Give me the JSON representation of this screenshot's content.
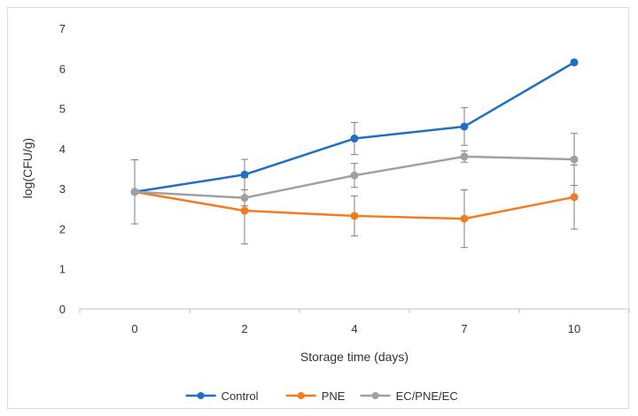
{
  "chart_data": {
    "type": "line",
    "title": "",
    "xlabel": "Storage time (days)",
    "ylabel": "log(CFU/g)",
    "categories": [
      "0",
      "2",
      "4",
      "7",
      "10"
    ],
    "ylim": [
      0,
      7
    ],
    "yticks": [
      0,
      1,
      2,
      3,
      4,
      5,
      6,
      7
    ],
    "grid": false,
    "legend_position": "bottom",
    "series": [
      {
        "name": "Control",
        "color": "#1f6fc4",
        "values": [
          2.92,
          3.35,
          4.25,
          4.55,
          6.15
        ],
        "errors": [
          0.8,
          0.38,
          0.4,
          0.47,
          0.05
        ]
      },
      {
        "name": "PNE",
        "color": "#f47b20",
        "values": [
          2.92,
          2.45,
          2.32,
          2.25,
          2.79
        ],
        "errors": [
          0.8,
          0.83,
          0.5,
          0.72,
          0.8
        ]
      },
      {
        "name": "EC/PNE/EC",
        "color": "#a0a0a0",
        "values": [
          2.92,
          2.77,
          3.33,
          3.8,
          3.73
        ],
        "errors": [
          0.8,
          0.2,
          0.3,
          0.14,
          0.65
        ]
      }
    ]
  }
}
